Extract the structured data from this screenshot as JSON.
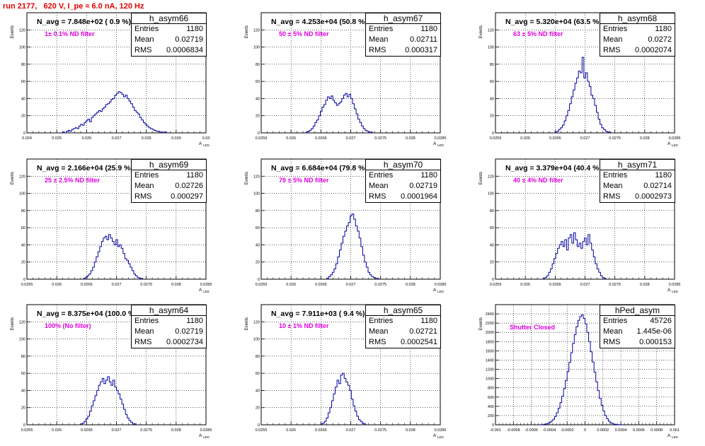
{
  "page_title": "run 2177,   620 V, I_pe ≈ 6.0 nA, 120 Hz",
  "chart_data": [
    {
      "type": "bar",
      "name": "h_asym66",
      "ylabel": "Events",
      "xlabel": "A_LED",
      "navg": "N_avg = 7.848e+02 ( 0.9 %)",
      "filter": "1± 0.1% ND filter",
      "entries": "1180",
      "mean": "0.02719",
      "rms": "0.0006834",
      "xlim": [
        0.024,
        0.03
      ],
      "ylim": [
        0,
        140
      ],
      "xticks": [
        0.024,
        0.025,
        0.026,
        0.027,
        0.028,
        0.029,
        0.03
      ],
      "xticklabels": [
        "0.024",
        "0.025",
        "0.026",
        "0.027",
        "0.028",
        "0.029",
        "0.03"
      ],
      "yticks": [
        0,
        20,
        40,
        60,
        80,
        100,
        120
      ],
      "bin_width": 6e-05,
      "bin_start": 0.0252,
      "values": [
        1,
        0,
        2,
        3,
        2,
        4,
        5,
        6,
        5,
        8,
        10,
        9,
        12,
        14,
        16,
        13,
        18,
        20,
        22,
        24,
        26,
        25,
        28,
        30,
        33,
        34,
        36,
        39,
        40,
        44,
        46,
        48,
        47,
        45,
        42,
        44,
        40,
        37,
        34,
        30,
        26,
        24,
        22,
        18,
        15,
        12,
        10,
        8,
        6,
        5,
        4,
        3,
        2,
        2,
        1,
        1,
        0,
        1
      ]
    },
    {
      "type": "bar",
      "name": "h_asym67",
      "ylabel": "Events",
      "xlabel": "A_LED",
      "navg": "N_avg = 4.253e+04 (50.8 %)",
      "filter": "50 ± 5% ND filter",
      "entries": "1180",
      "mean": "0.02711",
      "rms": "0.000317",
      "xlim": [
        0.0255,
        0.0285
      ],
      "ylim": [
        0,
        140
      ],
      "xticks": [
        0.0255,
        0.026,
        0.0265,
        0.027,
        0.0275,
        0.028,
        0.0285
      ],
      "xticklabels": [
        "0.0255",
        "0.026",
        "0.0265",
        "0.027",
        "0.0275",
        "0.028",
        "0.0285"
      ],
      "yticks": [
        0,
        20,
        40,
        60,
        80,
        100,
        120
      ],
      "bin_width": 3e-05,
      "bin_start": 0.02625,
      "values": [
        1,
        2,
        3,
        5,
        8,
        12,
        15,
        20,
        25,
        30,
        33,
        38,
        42,
        40,
        43,
        38,
        35,
        32,
        34,
        36,
        40,
        44,
        46,
        42,
        45,
        40,
        34,
        28,
        22,
        16,
        12,
        8,
        5,
        3,
        2,
        1,
        1
      ]
    },
    {
      "type": "bar",
      "name": "h_asym68",
      "ylabel": "Events",
      "xlabel": "A_LED",
      "navg": "N_avg = 5.320e+04 (63.5 %)",
      "filter": "63 ± 5% ND filter",
      "entries": "1180",
      "mean": "0.0272",
      "rms": "0.0002074",
      "xlim": [
        0.0255,
        0.0285
      ],
      "ylim": [
        0,
        140
      ],
      "xticks": [
        0.0255,
        0.026,
        0.0265,
        0.027,
        0.0275,
        0.028,
        0.0285
      ],
      "xticklabels": [
        "0.0255",
        "0.026",
        "0.0265",
        "0.027",
        "0.0275",
        "0.028",
        "0.0285"
      ],
      "yticks": [
        0,
        20,
        40,
        60,
        80,
        100,
        120
      ],
      "bin_width": 3e-05,
      "bin_start": 0.0265,
      "values": [
        1,
        2,
        4,
        6,
        9,
        14,
        20,
        26,
        34,
        42,
        50,
        58,
        64,
        72,
        70,
        88,
        64,
        70,
        60,
        54,
        44,
        40,
        32,
        24,
        16,
        10,
        6,
        4,
        2,
        1,
        1
      ]
    },
    {
      "type": "bar",
      "name": "h_asym69",
      "ylabel": "Events",
      "xlabel": "A_LED",
      "navg": "N_avg = 2.166e+04 (25.9 %)",
      "filter": "25 ± 2.5% ND filter",
      "entries": "1180",
      "mean": "0.02726",
      "rms": "0.000297",
      "xlim": [
        0.0255,
        0.0285
      ],
      "ylim": [
        0,
        140
      ],
      "xticks": [
        0.0255,
        0.026,
        0.0265,
        0.027,
        0.0275,
        0.028,
        0.0285
      ],
      "xticklabels": [
        "0.0255",
        "0.026",
        "0.0265",
        "0.027",
        "0.0275",
        "0.028",
        "0.0285"
      ],
      "yticks": [
        0,
        20,
        40,
        60,
        80,
        100,
        120
      ],
      "bin_width": 3e-05,
      "bin_start": 0.02645,
      "values": [
        1,
        2,
        4,
        6,
        10,
        14,
        20,
        26,
        32,
        38,
        44,
        48,
        50,
        46,
        52,
        48,
        44,
        40,
        46,
        38,
        40,
        36,
        30,
        24,
        22,
        18,
        14,
        10,
        6,
        4,
        2,
        1,
        1
      ]
    },
    {
      "type": "bar",
      "name": "h_asym70",
      "ylabel": "Events",
      "xlabel": "A_LED",
      "navg": "N_avg = 6.684e+04 (79.8 %)",
      "filter": "79 ± 5% ND filter",
      "entries": "1180",
      "mean": "0.02719",
      "rms": "0.0001964",
      "xlim": [
        0.0255,
        0.0285
      ],
      "ylim": [
        0,
        140
      ],
      "xticks": [
        0.0255,
        0.026,
        0.0265,
        0.027,
        0.0275,
        0.028,
        0.0285
      ],
      "xticklabels": [
        "0.0255",
        "0.026",
        "0.0265",
        "0.027",
        "0.0275",
        "0.028",
        "0.0285"
      ],
      "yticks": [
        0,
        20,
        40,
        60,
        80,
        100,
        120
      ],
      "bin_width": 3e-05,
      "bin_start": 0.0266,
      "values": [
        1,
        3,
        5,
        8,
        12,
        18,
        26,
        34,
        42,
        50,
        56,
        62,
        66,
        74,
        76,
        70,
        62,
        56,
        48,
        38,
        28,
        20,
        14,
        8,
        5,
        3,
        2,
        1,
        1
      ]
    },
    {
      "type": "bar",
      "name": "h_asym71",
      "ylabel": "Events",
      "xlabel": "A_LED",
      "navg": "N_avg = 3.379e+04 (40.4 %)",
      "filter": "40 ± 4% ND filter",
      "entries": "1180",
      "mean": "0.02714",
      "rms": "0.0002973",
      "xlim": [
        0.0255,
        0.0285
      ],
      "ylim": [
        0,
        140
      ],
      "xticks": [
        0.0255,
        0.026,
        0.0265,
        0.027,
        0.0275,
        0.028,
        0.0285
      ],
      "xticklabels": [
        "0.0255",
        "0.026",
        "0.0265",
        "0.027",
        "0.0275",
        "0.028",
        "0.0285"
      ],
      "yticks": [
        0,
        20,
        40,
        60,
        80,
        100,
        120
      ],
      "bin_width": 3e-05,
      "bin_start": 0.0263,
      "values": [
        1,
        2,
        4,
        8,
        12,
        18,
        24,
        30,
        36,
        40,
        44,
        38,
        46,
        34,
        48,
        52,
        42,
        54,
        46,
        38,
        42,
        36,
        44,
        48,
        40,
        52,
        42,
        34,
        26,
        18,
        12,
        8,
        4,
        2,
        1
      ]
    },
    {
      "type": "bar",
      "name": "h_asym64",
      "ylabel": "Events",
      "xlabel": "A_LED",
      "navg": "N_avg = 8.375e+04 (100.0 %)",
      "filter": "100% (No filter)",
      "entries": "1180",
      "mean": "0.02719",
      "rms": "0.0002734",
      "xlim": [
        0.0255,
        0.0285
      ],
      "ylim": [
        0,
        140
      ],
      "xticks": [
        0.0255,
        0.026,
        0.0265,
        0.027,
        0.0275,
        0.028,
        0.0285
      ],
      "xticklabels": [
        "0.0255",
        "0.026",
        "0.0265",
        "0.027",
        "0.0275",
        "0.028",
        "0.0285"
      ],
      "yticks": [
        0,
        20,
        40,
        60,
        80,
        100,
        120
      ],
      "bin_width": 3e-05,
      "bin_start": 0.0264,
      "values": [
        1,
        2,
        4,
        7,
        10,
        16,
        22,
        28,
        34,
        40,
        46,
        50,
        54,
        48,
        52,
        56,
        50,
        46,
        52,
        44,
        40,
        36,
        30,
        24,
        18,
        12,
        8,
        5,
        3,
        1,
        1
      ]
    },
    {
      "type": "bar",
      "name": "h_asym65",
      "ylabel": "Events",
      "xlabel": "A_LED",
      "navg": "N_avg = 7.911e+03 ( 9.4 %)",
      "filter": "10 ± 1% ND filter",
      "entries": "1180",
      "mean": "0.02721",
      "rms": "0.0002541",
      "xlim": [
        0.0255,
        0.0285
      ],
      "ylim": [
        0,
        140
      ],
      "xticks": [
        0.0255,
        0.026,
        0.0265,
        0.027,
        0.0275,
        0.028,
        0.0285
      ],
      "xticklabels": [
        "0.0255",
        "0.026",
        "0.0265",
        "0.027",
        "0.0275",
        "0.028",
        "0.0285"
      ],
      "yticks": [
        0,
        20,
        40,
        60,
        80,
        100,
        120
      ],
      "bin_width": 3e-05,
      "bin_start": 0.0265,
      "values": [
        1,
        2,
        4,
        8,
        14,
        20,
        28,
        36,
        44,
        52,
        48,
        58,
        60,
        54,
        50,
        46,
        40,
        30,
        22,
        16,
        10,
        6,
        4,
        2,
        1
      ]
    },
    {
      "type": "bar",
      "name": "hPed_asym",
      "ylabel": "Events",
      "xlabel": "A_LED",
      "navg": "",
      "filter": "Shutter Closed",
      "entries": "45726",
      "mean": "1.445e-06",
      "rms": "0.000153",
      "xlim": [
        -0.001,
        0.001
      ],
      "ylim": [
        0,
        2600
      ],
      "xticks": [
        -0.001,
        -0.0008,
        -0.0006,
        -0.0004,
        -0.0002,
        0,
        0.0002,
        0.0004,
        0.0006,
        0.0008,
        0.001
      ],
      "xticklabels": [
        "-0.001",
        "-0.0008",
        "-0.0006",
        "-0.0004",
        "-0.0002",
        "0",
        "0.0002",
        "0.0004",
        "0.0006",
        "0.0008",
        "0.001"
      ],
      "yticks": [
        0,
        200,
        400,
        600,
        800,
        1000,
        1200,
        1400,
        1600,
        1800,
        2000,
        2200,
        2400
      ],
      "bin_width": 2e-05,
      "bin_start": -0.0005,
      "values": [
        2,
        5,
        10,
        18,
        30,
        50,
        80,
        120,
        180,
        260,
        360,
        480,
        620,
        780,
        960,
        1150,
        1350,
        1560,
        1760,
        1950,
        2120,
        2260,
        2340,
        2380,
        2300,
        2180,
        2000,
        1800,
        1580,
        1360,
        1140,
        930,
        740,
        570,
        420,
        300,
        200,
        130,
        80,
        46,
        26,
        14,
        8,
        4,
        2,
        1
      ]
    }
  ],
  "axis_label_tag": "A",
  "axis_label_sub": "LED",
  "y_axis_title": "Events",
  "stat_labels": {
    "entries": "Entries",
    "mean": "Mean",
    "rms": "RMS"
  }
}
